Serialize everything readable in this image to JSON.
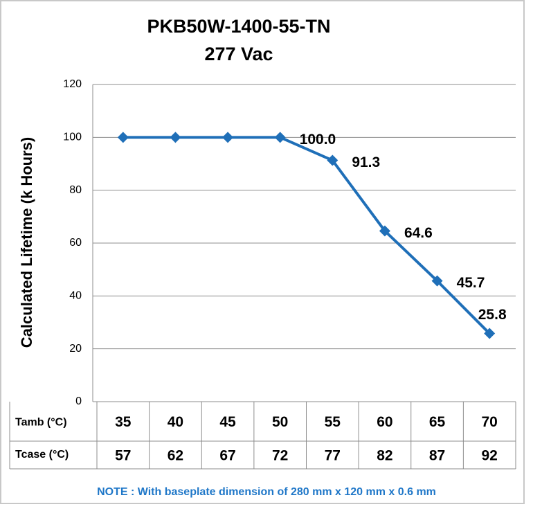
{
  "chart_data": {
    "type": "line",
    "title": "PKB50W-1400-55-TN",
    "subtitle": "277 Vac",
    "y_label": "Calculated Lifetime (k Hours)",
    "category_label": "Tamb (°C)",
    "categories": [
      35,
      40,
      45,
      50,
      55,
      60,
      65,
      70
    ],
    "category2_label": "Tcase (°C)",
    "categories2": [
      57,
      62,
      67,
      72,
      77,
      82,
      87,
      92
    ],
    "values": [
      100,
      100,
      100,
      100,
      91.3,
      64.6,
      45.7,
      25.8
    ],
    "value_labels": [
      null,
      null,
      null,
      "100.0",
      "91.3",
      "64.6",
      "45.7",
      "25.8"
    ],
    "color": "#1f6fb8",
    "ylim": [
      0,
      120
    ],
    "yticks": [
      0,
      20,
      40,
      60,
      80,
      100,
      120
    ],
    "grid": true,
    "note": "NOTE : With baseplate dimension of 280 mm x 120 mm x 0.6 mm"
  }
}
